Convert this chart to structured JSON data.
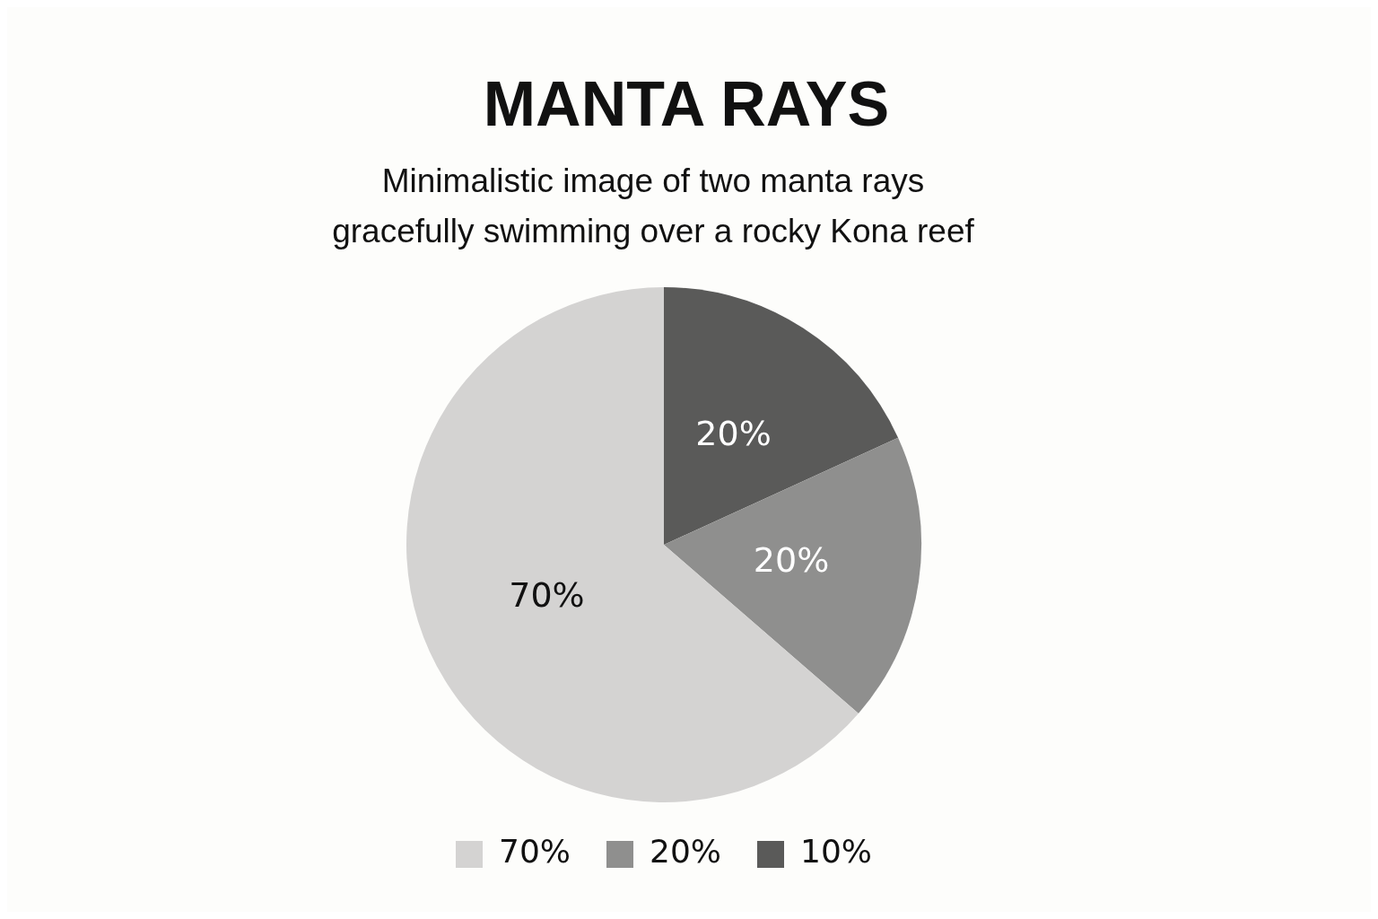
{
  "chart_data": {
    "type": "pie",
    "title": "MANTA RAYS",
    "subtitle": "Minimalistic image of two manta rays gracefully swimming over a rocky Kona reef",
    "categories": [
      "10%",
      "20%",
      "70%"
    ],
    "values": [
      20,
      20,
      70
    ],
    "colors": [
      "#5a5a59",
      "#8f8f8e",
      "#d4d3d2"
    ],
    "value_labels": [
      "20%",
      "20%",
      "70%"
    ],
    "legend": "bottom"
  }
}
